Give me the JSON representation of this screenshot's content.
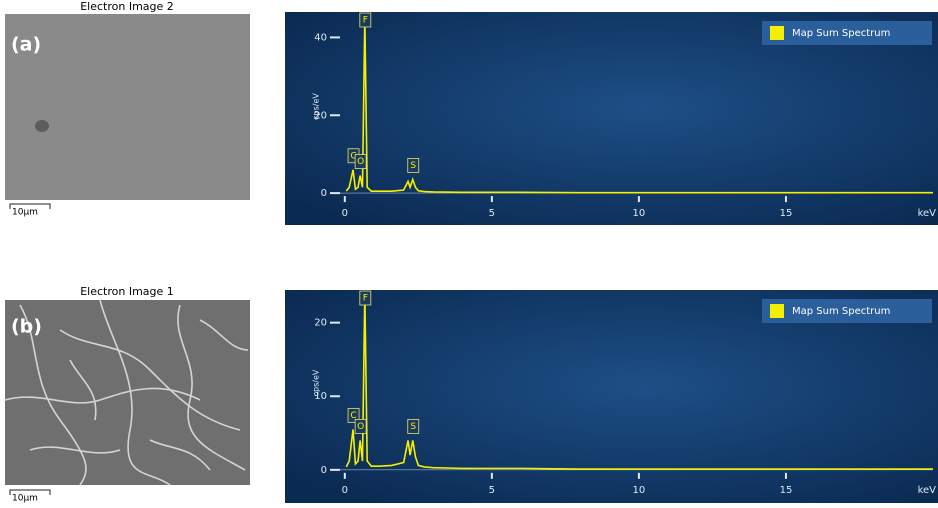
{
  "panels": [
    {
      "label": "(a)",
      "image_title": "Electron Image 2",
      "scale_bar": "10µm"
    },
    {
      "label": "(b)",
      "image_title": "Electron Image 1",
      "scale_bar": "10µm"
    }
  ],
  "chart_data": [
    {
      "type": "line",
      "ylabel": "cps/eV",
      "xlabel": "keV",
      "x": [
        0.05,
        0.15,
        0.28,
        0.36,
        0.45,
        0.52,
        0.6,
        0.68,
        0.76,
        0.9,
        1.2,
        1.6,
        2.0,
        2.15,
        2.22,
        2.31,
        2.4,
        2.5,
        2.7,
        3,
        4,
        6,
        8,
        10,
        12,
        15,
        18,
        20
      ],
      "series": [
        {
          "name": "Map Sum Spectrum",
          "color": "#f5f000",
          "values": [
            0.5,
            1.5,
            6,
            1,
            1.5,
            4.5,
            1.5,
            45,
            1.5,
            0.5,
            0.5,
            0.5,
            0.8,
            3,
            1.5,
            3.5,
            1.5,
            0.6,
            0.4,
            0.3,
            0.2,
            0.2,
            0.1,
            0.1,
            0.1,
            0.1,
            0.1,
            0.1
          ]
        }
      ],
      "annotations": [
        {
          "text": "C",
          "x": 0.28
        },
        {
          "text": "O",
          "x": 0.52
        },
        {
          "text": "F",
          "x": 0.68
        },
        {
          "text": "S",
          "x": 2.31
        }
      ],
      "xlim": [
        -0.3,
        20
      ],
      "ylim": [
        -1,
        45.5
      ],
      "xticks": [
        0,
        5,
        10,
        15
      ],
      "yticks": [
        0,
        20,
        40
      ],
      "legend": "top-right"
    },
    {
      "type": "line",
      "ylabel": "cps/eV",
      "xlabel": "keV",
      "x": [
        0.05,
        0.15,
        0.28,
        0.36,
        0.45,
        0.52,
        0.6,
        0.68,
        0.76,
        0.9,
        1.2,
        1.6,
        2.0,
        2.15,
        2.22,
        2.31,
        2.4,
        2.5,
        2.7,
        3,
        4,
        6,
        8,
        10,
        12,
        15,
        18,
        20
      ],
      "series": [
        {
          "name": "Map Sum Spectrum",
          "color": "#f5f000",
          "values": [
            0.4,
            1.2,
            5.5,
            0.8,
            1.2,
            4,
            1.2,
            24,
            1.2,
            0.5,
            0.5,
            0.6,
            1,
            4,
            2,
            4,
            1.8,
            0.6,
            0.4,
            0.3,
            0.2,
            0.2,
            0.1,
            0.1,
            0.1,
            0.1,
            0.1,
            0.1
          ]
        }
      ],
      "annotations": [
        {
          "text": "C",
          "x": 0.28
        },
        {
          "text": "O",
          "x": 0.52
        },
        {
          "text": "F",
          "x": 0.68
        },
        {
          "text": "S",
          "x": 2.31
        }
      ],
      "xlim": [
        -0.3,
        20
      ],
      "ylim": [
        -0.7,
        24.3
      ],
      "xticks": [
        0,
        5,
        10,
        15
      ],
      "yticks": [
        0,
        10,
        20
      ],
      "legend": "top-right"
    }
  ]
}
